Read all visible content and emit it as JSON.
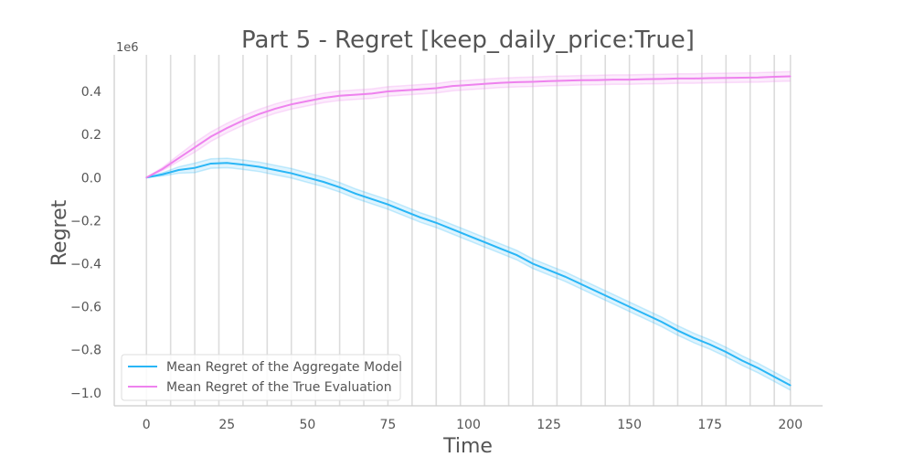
{
  "chart_data": {
    "type": "line",
    "title": "Part 5 - Regret [keep_daily_price:True]",
    "xlabel": "Time",
    "ylabel": "Regret",
    "y_offset_label": "1e6",
    "xlim": [
      -10,
      210
    ],
    "ylim": [
      -1.06,
      0.57
    ],
    "x_ticks": [
      0,
      25,
      50,
      75,
      100,
      125,
      150,
      175,
      200
    ],
    "x_tick_labels": [
      "0",
      "25",
      "50",
      "75",
      "100",
      "125",
      "150",
      "175",
      "200"
    ],
    "y_ticks": [
      -1.0,
      -0.8,
      -0.6,
      -0.4,
      -0.2,
      0.0,
      0.2,
      0.4
    ],
    "y_tick_labels": [
      "−1.0",
      "−0.8",
      "−0.6",
      "−0.4",
      "−0.2",
      "0.0",
      "0.2",
      "0.4"
    ],
    "vertical_gridlines_x": [
      0,
      7.5,
      15,
      22.5,
      30,
      37.5,
      45,
      52.5,
      60,
      67.5,
      75,
      82.5,
      90,
      97.5,
      105,
      112.5,
      120,
      127.5,
      135,
      142.5,
      150,
      157.5,
      165,
      172.5,
      180,
      187.5,
      195,
      200
    ],
    "legend_position": "lower-left",
    "series": [
      {
        "name": "Mean Regret of the Aggregate Model",
        "color": "#29b6f6",
        "x": [
          0,
          5,
          10,
          15,
          20,
          25,
          30,
          35,
          40,
          45,
          50,
          55,
          60,
          65,
          70,
          75,
          80,
          85,
          90,
          95,
          100,
          105,
          110,
          115,
          120,
          125,
          130,
          135,
          140,
          145,
          150,
          155,
          160,
          165,
          170,
          175,
          180,
          185,
          190,
          195,
          200
        ],
        "y": [
          0.0,
          0.015,
          0.035,
          0.045,
          0.065,
          0.068,
          0.06,
          0.05,
          0.035,
          0.02,
          0.0,
          -0.02,
          -0.045,
          -0.075,
          -0.1,
          -0.125,
          -0.155,
          -0.185,
          -0.21,
          -0.24,
          -0.27,
          -0.3,
          -0.33,
          -0.36,
          -0.4,
          -0.43,
          -0.46,
          -0.495,
          -0.53,
          -0.565,
          -0.6,
          -0.635,
          -0.67,
          -0.71,
          -0.745,
          -0.775,
          -0.81,
          -0.85,
          -0.885,
          -0.925,
          -0.965
        ],
        "band_halfwidth": 0.022
      },
      {
        "name": "Mean Regret of the True Evaluation",
        "color": "#ee82ee",
        "x": [
          0,
          5,
          10,
          15,
          20,
          25,
          30,
          35,
          40,
          45,
          50,
          55,
          60,
          65,
          70,
          75,
          80,
          85,
          90,
          95,
          100,
          105,
          110,
          115,
          120,
          125,
          130,
          135,
          140,
          145,
          150,
          155,
          160,
          165,
          170,
          175,
          180,
          185,
          190,
          195,
          200
        ],
        "y": [
          0.0,
          0.04,
          0.09,
          0.14,
          0.19,
          0.23,
          0.265,
          0.295,
          0.32,
          0.34,
          0.355,
          0.37,
          0.38,
          0.385,
          0.39,
          0.4,
          0.405,
          0.41,
          0.415,
          0.425,
          0.43,
          0.435,
          0.44,
          0.443,
          0.445,
          0.448,
          0.45,
          0.452,
          0.453,
          0.455,
          0.455,
          0.457,
          0.458,
          0.46,
          0.46,
          0.462,
          0.463,
          0.464,
          0.465,
          0.468,
          0.47
        ],
        "band_halfwidth": 0.022
      }
    ]
  }
}
